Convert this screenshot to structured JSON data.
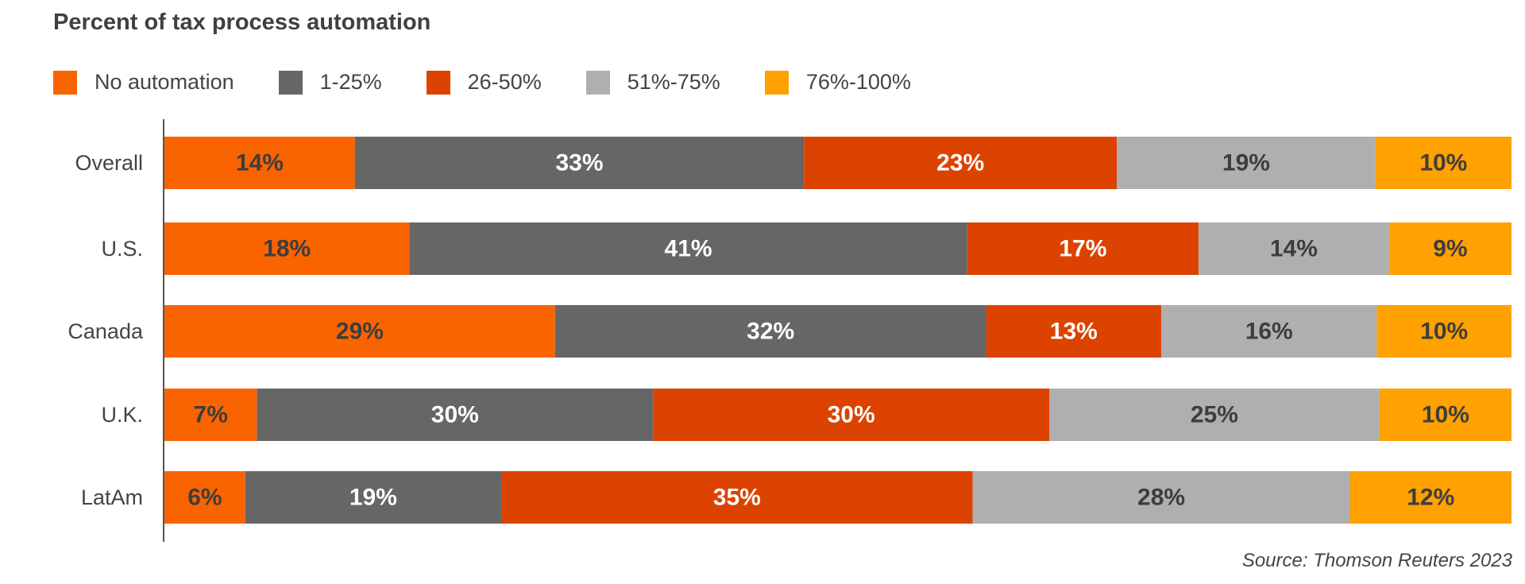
{
  "chart_data": {
    "type": "bar",
    "orientation": "horizontal",
    "stacked": true,
    "title": "Percent of tax process automation",
    "categories": [
      "Overall",
      "U.S.",
      "Canada",
      "U.K.",
      "LatAm"
    ],
    "series": [
      {
        "name": "No automation",
        "color": "#f96400",
        "label_color": "#3d3d3d",
        "values": [
          14,
          18,
          29,
          7,
          6
        ],
        "labels": [
          "14%",
          "18%",
          "29%",
          "7%",
          "6%"
        ]
      },
      {
        "name": "1-25%",
        "color": "#666666",
        "label_color": "#ffffff",
        "values": [
          33,
          41,
          32,
          30,
          19
        ],
        "labels": [
          "33%",
          "41%",
          "32%",
          "30%",
          "19%"
        ]
      },
      {
        "name": "26-50%",
        "color": "#dc4300",
        "label_color": "#ffffff",
        "values": [
          23,
          17,
          13,
          30,
          35
        ],
        "labels": [
          "23%",
          "17%",
          "13%",
          "30%",
          "35%"
        ]
      },
      {
        "name": "51%-75%",
        "color": "#afafaf",
        "label_color": "#3d3d3d",
        "values": [
          19,
          14,
          16,
          25,
          28
        ],
        "labels": [
          "19%",
          "14%",
          "16%",
          "25%",
          "28%"
        ]
      },
      {
        "name": "76%-100%",
        "color": "#ffa100",
        "label_color": "#3d3d3d",
        "values": [
          10,
          9,
          10,
          10,
          12
        ],
        "labels": [
          "10%",
          "9%",
          "10%",
          "10%",
          "12%"
        ]
      }
    ],
    "legend_position": "top-left",
    "grid": false,
    "source": "Source: Thomson Reuters 2023"
  }
}
